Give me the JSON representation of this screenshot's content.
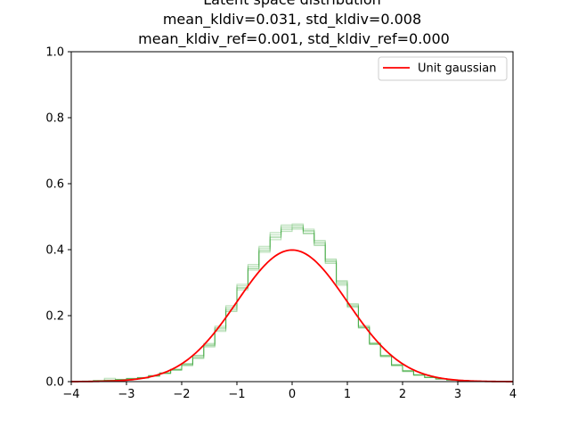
{
  "chart_data": {
    "type": "line",
    "title_lines": [
      "Latent space distribution",
      "mean_kldiv=0.031, std_kldiv=0.008",
      "mean_kldiv_ref=0.001, std_kldiv_ref=0.000"
    ],
    "xlabel": "",
    "ylabel": "",
    "xlim": [
      -4,
      4
    ],
    "ylim": [
      0,
      1.0
    ],
    "x_ticks": [
      "−4",
      "−3",
      "−2",
      "−1",
      "0",
      "1",
      "2",
      "3",
      "4"
    ],
    "y_ticks": [
      "0.0",
      "0.2",
      "0.4",
      "0.6",
      "0.8",
      "1.0"
    ],
    "grid": false,
    "legend": {
      "position": "top-right",
      "entries": [
        {
          "name": "Unit gaussian",
          "color": "#ff0000"
        }
      ]
    },
    "histogram_series": {
      "kind": "step",
      "color": "#2ca02c",
      "opacity": 0.35,
      "bin_edges": [
        -4.0,
        -3.8,
        -3.6,
        -3.4,
        -3.2,
        -3.0,
        -2.8,
        -2.6,
        -2.4,
        -2.2,
        -2.0,
        -1.8,
        -1.6,
        -1.4,
        -1.2,
        -1.0,
        -0.8,
        -0.6,
        -0.4,
        -0.2,
        0.0,
        0.2,
        0.4,
        0.6,
        0.8,
        1.0,
        1.2,
        1.4,
        1.6,
        1.8,
        2.0,
        2.2,
        2.4,
        2.6,
        2.8,
        3.0,
        3.2,
        3.4,
        3.6,
        3.8,
        4.0
      ],
      "densities": [
        [
          0.0,
          0.001,
          0.002,
          0.004,
          0.006,
          0.009,
          0.012,
          0.018,
          0.026,
          0.036,
          0.052,
          0.075,
          0.11,
          0.16,
          0.22,
          0.285,
          0.345,
          0.4,
          0.44,
          0.465,
          0.47,
          0.455,
          0.42,
          0.365,
          0.3,
          0.23,
          0.165,
          0.115,
          0.078,
          0.05,
          0.032,
          0.02,
          0.013,
          0.008,
          0.005,
          0.003,
          0.002,
          0.001,
          0.0,
          0.0
        ],
        [
          0.0,
          0.002,
          0.004,
          0.01,
          0.006,
          0.008,
          0.01,
          0.016,
          0.024,
          0.034,
          0.048,
          0.07,
          0.105,
          0.152,
          0.212,
          0.278,
          0.338,
          0.392,
          0.43,
          0.455,
          0.462,
          0.448,
          0.412,
          0.358,
          0.292,
          0.225,
          0.162,
          0.112,
          0.075,
          0.048,
          0.03,
          0.019,
          0.012,
          0.007,
          0.004,
          0.002,
          0.001,
          0.001,
          0.0,
          0.0
        ],
        [
          0.0,
          0.001,
          0.002,
          0.005,
          0.007,
          0.01,
          0.013,
          0.019,
          0.027,
          0.038,
          0.055,
          0.08,
          0.116,
          0.168,
          0.23,
          0.295,
          0.355,
          0.41,
          0.452,
          0.475,
          0.478,
          0.462,
          0.428,
          0.372,
          0.306,
          0.236,
          0.17,
          0.118,
          0.08,
          0.052,
          0.034,
          0.021,
          0.014,
          0.009,
          0.006,
          0.004,
          0.002,
          0.001,
          0.001,
          0.0
        ],
        [
          0.0,
          0.001,
          0.003,
          0.004,
          0.005,
          0.008,
          0.011,
          0.017,
          0.025,
          0.035,
          0.05,
          0.072,
          0.108,
          0.156,
          0.216,
          0.282,
          0.342,
          0.396,
          0.436,
          0.46,
          0.466,
          0.45,
          0.416,
          0.362,
          0.296,
          0.228,
          0.164,
          0.114,
          0.077,
          0.049,
          0.031,
          0.02,
          0.012,
          0.008,
          0.005,
          0.003,
          0.002,
          0.001,
          0.0,
          0.0
        ],
        [
          0.0,
          0.001,
          0.002,
          0.004,
          0.006,
          0.009,
          0.012,
          0.018,
          0.026,
          0.037,
          0.053,
          0.078,
          0.113,
          0.164,
          0.225,
          0.29,
          0.35,
          0.405,
          0.446,
          0.47,
          0.474,
          0.458,
          0.424,
          0.368,
          0.303,
          0.233,
          0.167,
          0.116,
          0.079,
          0.051,
          0.033,
          0.021,
          0.013,
          0.008,
          0.005,
          0.003,
          0.002,
          0.001,
          0.0,
          0.0
        ]
      ]
    },
    "line_series": {
      "name": "Unit gaussian",
      "color": "#ff0000",
      "function": "standard_normal_pdf"
    }
  }
}
